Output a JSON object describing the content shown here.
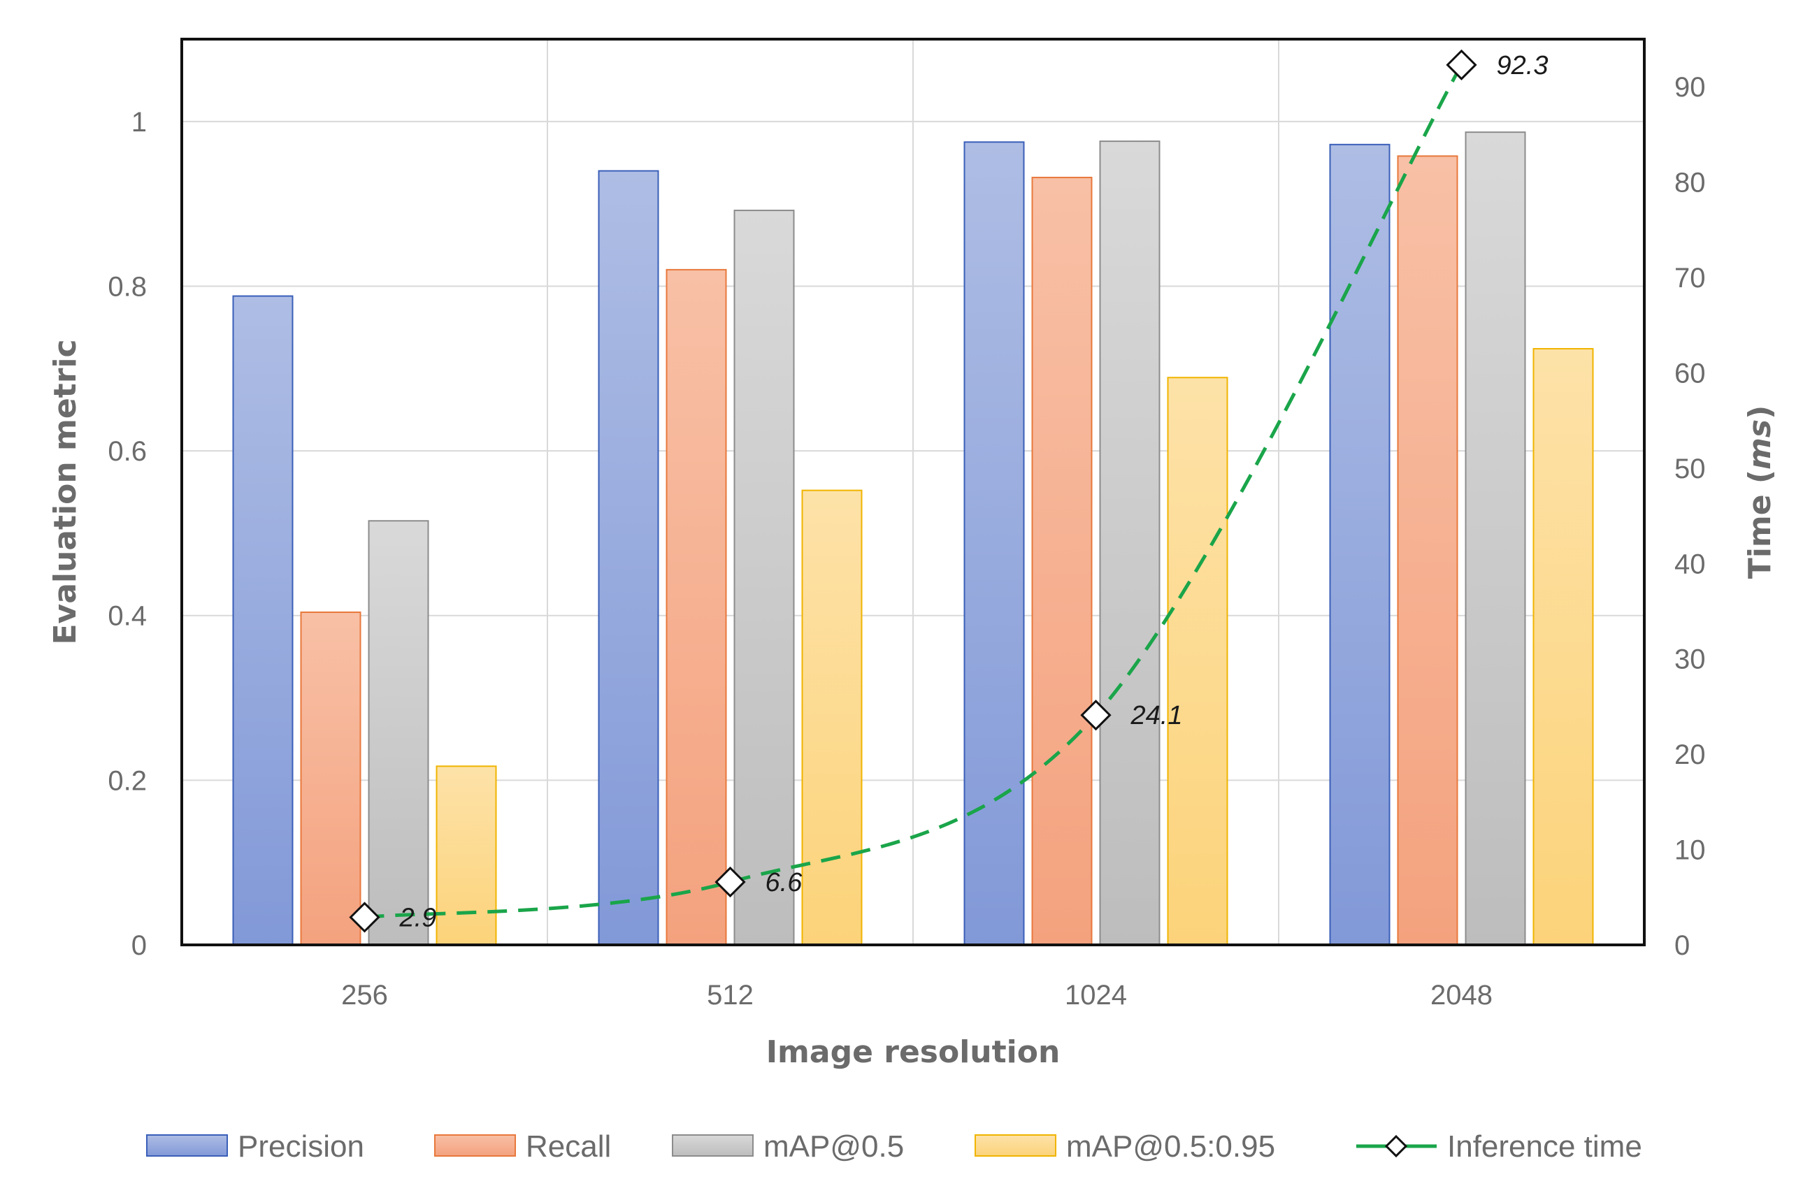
{
  "chart_data": {
    "type": "bar",
    "categories": [
      "256",
      "512",
      "1024",
      "2048"
    ],
    "xlabel": "Image resolution",
    "ylabel": "Evaluation metric",
    "y2label": "Time (ms)",
    "ylim": [
      0,
      1.1
    ],
    "y2lim": [
      0,
      95
    ],
    "yticks": [
      "0",
      "0.2",
      "0.4",
      "0.6",
      "0.8",
      "1"
    ],
    "y2ticks": [
      "0",
      "10",
      "20",
      "30",
      "40",
      "50",
      "60",
      "70",
      "80",
      "90"
    ],
    "grid": true,
    "legend_position": "bottom",
    "series": [
      {
        "name": "Precision",
        "type": "bar",
        "axis": "left",
        "values": [
          0.788,
          0.94,
          0.975,
          0.972
        ],
        "color": "#8fa3d8",
        "edge": "#3a5fb8"
      },
      {
        "name": "Recall",
        "type": "bar",
        "axis": "left",
        "values": [
          0.404,
          0.82,
          0.932,
          0.958
        ],
        "color": "#f5a987",
        "edge": "#e8783c"
      },
      {
        "name": "mAP@0.5",
        "type": "bar",
        "axis": "left",
        "values": [
          0.515,
          0.892,
          0.976,
          0.987
        ],
        "color": "#c8c8c8",
        "edge": "#8c8c8c"
      },
      {
        "name": "mAP@0.5:0.95",
        "type": "bar",
        "axis": "left",
        "values": [
          0.217,
          0.552,
          0.689,
          0.724
        ],
        "color": "#fcd88a",
        "edge": "#f0b400"
      },
      {
        "name": "Inference time",
        "type": "line",
        "axis": "right",
        "values": [
          2.9,
          6.6,
          24.1,
          92.3
        ],
        "labels": [
          "2.9",
          "6.6",
          "24.1",
          "92.3"
        ],
        "color": "#1aa54a"
      }
    ]
  }
}
